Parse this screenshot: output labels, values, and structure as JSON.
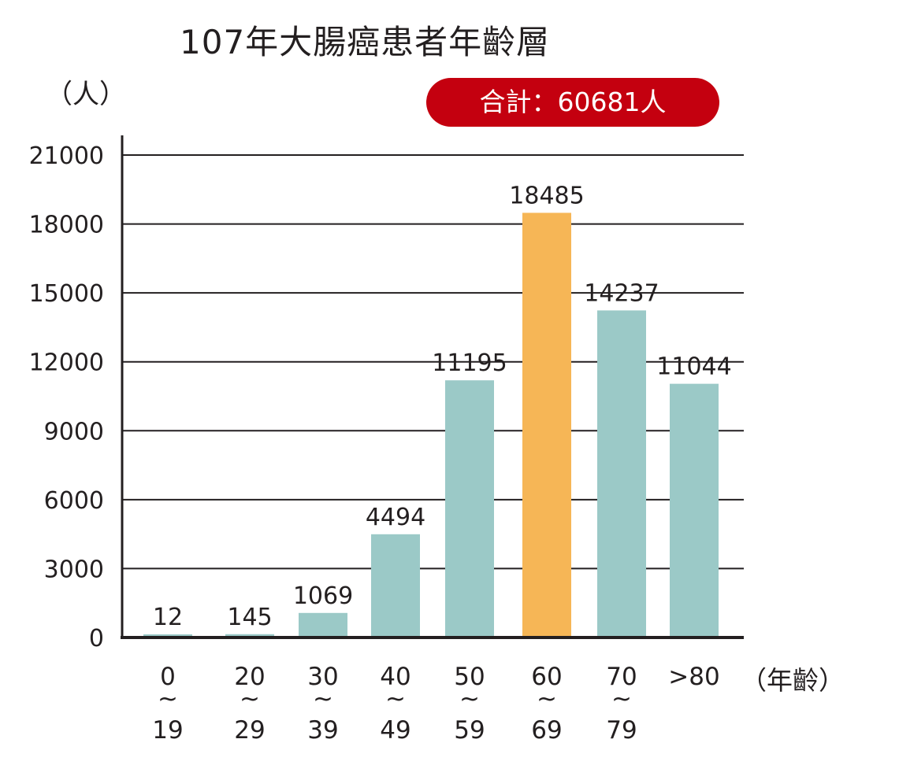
{
  "chart_data": {
    "type": "bar",
    "title": "107年大腸癌患者年齡層",
    "ylabel": "（人）",
    "xlabel": "（年齡）",
    "total_label": "合計：60681人",
    "ylim": [
      0,
      21000
    ],
    "yticks": [
      0,
      3000,
      6000,
      9000,
      12000,
      15000,
      18000,
      21000
    ],
    "grid": true,
    "categories": [
      {
        "top": "0",
        "mid": "~",
        "bottom": "19"
      },
      {
        "top": "20",
        "mid": "~",
        "bottom": "29"
      },
      {
        "top": "30",
        "mid": "~",
        "bottom": "39"
      },
      {
        "top": "40",
        "mid": "~",
        "bottom": "49"
      },
      {
        "top": "50",
        "mid": "~",
        "bottom": "59"
      },
      {
        "top": "60",
        "mid": "~",
        "bottom": "69"
      },
      {
        "top": "70",
        "mid": "~",
        "bottom": "79"
      },
      {
        "top": ">80",
        "mid": "",
        "bottom": ""
      }
    ],
    "values": [
      12,
      145,
      1069,
      4494,
      11195,
      18485,
      14237,
      11044
    ],
    "colors": {
      "bar": "#9bc9c7",
      "highlight": "#f6b656",
      "grid": "#231f20",
      "badge": "#c4000f"
    },
    "highlight_index": 5
  }
}
